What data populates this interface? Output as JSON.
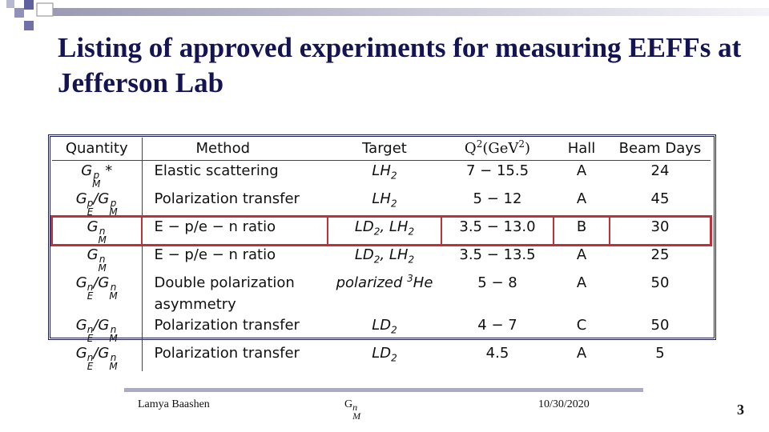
{
  "title": "Listing of approved experiments for measuring EEFFs at Jefferson Lab",
  "table": {
    "header": [
      "Quantity",
      "Method",
      "Target",
      [
        {
          "t": "Q",
          "sup": "2"
        },
        {
          "t": "(GeV",
          "sup": "2"
        },
        {
          "t": ")"
        }
      ],
      "Hall",
      "Beam Days"
    ],
    "rows": [
      {
        "cells": [
          [
            {
              "t": "G",
              "sup": "p",
              "sub": "M"
            },
            {
              "t": " *"
            }
          ],
          "Elastic scattering",
          [
            {
              "t": "LH",
              "sub": "2"
            }
          ],
          "7 − 15.5",
          "A",
          24
        ]
      },
      {
        "cells": [
          [
            {
              "t": "G",
              "sup": "p",
              "sub": "E"
            },
            {
              "t": "/G",
              "sup": "p",
              "sub": "M"
            }
          ],
          "Polarization transfer",
          [
            {
              "t": "LH",
              "sub": "2"
            }
          ],
          "5 − 12",
          "A",
          45
        ]
      },
      {
        "cells": [
          [
            {
              "t": "G",
              "sup": "n",
              "sub": "M"
            }
          ],
          "E − p/e − n ratio",
          [
            {
              "t": "LD",
              "sub": "2"
            },
            {
              "t": ", LH",
              "sub": "2"
            }
          ],
          "3.5 − 13.0",
          "B",
          30
        ],
        "highlight": true
      },
      {
        "cells": [
          [
            {
              "t": "G",
              "sup": "n",
              "sub": "M"
            }
          ],
          "E − p/e − n ratio",
          [
            {
              "t": "LD",
              "sub": "2"
            },
            {
              "t": ", LH",
              "sub": "2"
            }
          ],
          "3.5 − 13.5",
          "A",
          25
        ]
      },
      {
        "cells": [
          [
            {
              "t": "G",
              "sup": "n",
              "sub": "E"
            },
            {
              "t": "/G",
              "sup": "n",
              "sub": "M"
            }
          ],
          "Double polarization asymmetry",
          [
            {
              "t": "polarized "
            },
            {
              "sup": "3"
            },
            {
              "t": "He"
            }
          ],
          "5 − 8",
          "A",
          50
        ]
      },
      {
        "cells": [
          [
            {
              "t": "G",
              "sup": "n",
              "sub": "E"
            },
            {
              "t": "/G",
              "sup": "n",
              "sub": "M"
            }
          ],
          "Polarization transfer",
          [
            {
              "t": "LD",
              "sub": "2"
            }
          ],
          "4 − 7",
          "C",
          50
        ]
      },
      {
        "cells": [
          [
            {
              "t": "G",
              "sup": "n",
              "sub": "E"
            },
            {
              "t": "/G",
              "sup": "n",
              "sub": "M"
            }
          ],
          "Polarization transfer",
          [
            {
              "t": "LD",
              "sub": "2"
            }
          ],
          "4.5",
          "A",
          5
        ]
      }
    ]
  },
  "footer": {
    "author": "Lamya Baashen",
    "topic": [
      {
        "t": "G",
        "sup": "n",
        "sub": "M"
      }
    ],
    "date": "10/30/2020",
    "page": "3"
  }
}
